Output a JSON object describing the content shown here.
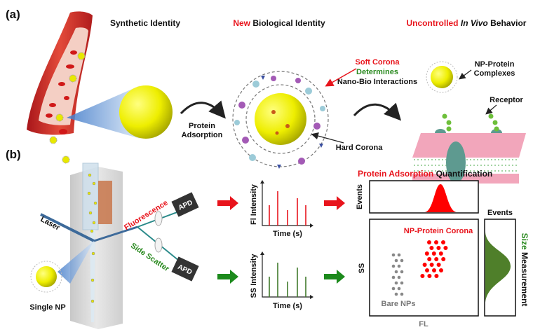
{
  "panel_a": {
    "label": "(a)",
    "synthetic_identity": "Synthetic Identity",
    "new_word": "New",
    "biological_identity": "Biological Identity",
    "protein_adsorption_line1": "Protein",
    "protein_adsorption_line2": "Adsorption",
    "soft_corona": "Soft Corona",
    "determines": "Determines",
    "nano_bio": "Nano-Bio Interactions",
    "hard_corona": "Hard Corona",
    "uncontrolled": "Uncontrolled",
    "in_vivo": "In Vivo",
    "behavior": "Behavior",
    "np_protein_line1": "NP-Protein",
    "np_protein_line2": "Complexes",
    "receptor": "Receptor"
  },
  "panel_b": {
    "label": "(b)",
    "laser": "Laser",
    "fluorescence": "Fluorescence",
    "side_scatter": "Side Scatter",
    "apd": "APD",
    "single_np": "Single NP",
    "fl_chart": {
      "ylabel": "Fl Intensity",
      "xlabel": "Time (s)"
    },
    "ss_chart": {
      "ylabel": "SS Intensity",
      "xlabel": "Time (s)"
    },
    "quant_red": "Protein Adsorption",
    "quant_black": "Quantification",
    "events_top": "Events",
    "events_side": "Events",
    "ss_axis": "SS",
    "fl_axis": "FL",
    "np_protein_corona": "NP-Protein Corona",
    "bare_nps": "Bare NPs",
    "size_word": "Size",
    "measurement_word": "Measurement"
  },
  "colors": {
    "red": "#e8141c",
    "green": "#2a8a1f",
    "yellow": "#f2f200",
    "olive": "#4f7f2a"
  }
}
